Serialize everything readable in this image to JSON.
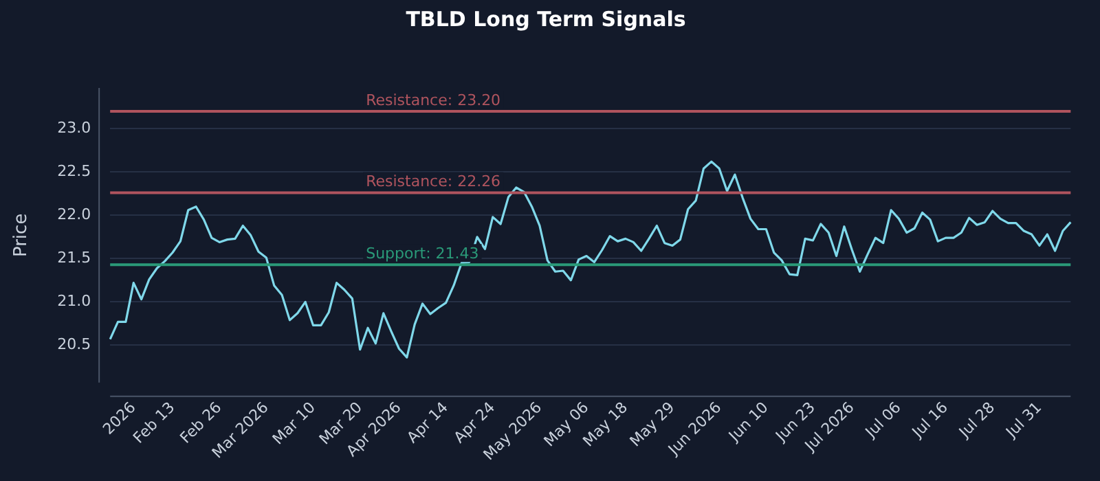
{
  "chart_data": {
    "type": "line",
    "title": "TBLD Long Term Signals",
    "ylabel": "Price",
    "categories": [
      null,
      null,
      null,
      "2026",
      null,
      null,
      null,
      null,
      "Feb 13",
      null,
      null,
      null,
      null,
      null,
      "Feb 26",
      null,
      null,
      null,
      null,
      null,
      "Mar 2026",
      null,
      null,
      null,
      null,
      null,
      "Mar 10",
      null,
      null,
      null,
      null,
      null,
      "Mar 20",
      null,
      null,
      null,
      null,
      "Apr 2026",
      null,
      null,
      null,
      null,
      null,
      "Apr 14",
      null,
      null,
      null,
      null,
      null,
      "Apr 24",
      null,
      null,
      null,
      null,
      null,
      "May 2026",
      null,
      null,
      null,
      null,
      null,
      "May 06",
      null,
      null,
      null,
      null,
      "May 18",
      null,
      null,
      null,
      null,
      null,
      "May 29",
      null,
      null,
      null,
      null,
      null,
      "Jun 2026",
      null,
      null,
      null,
      null,
      null,
      "Jun 10",
      null,
      null,
      null,
      null,
      null,
      "Jun 23",
      null,
      null,
      null,
      null,
      "Jul 2026",
      null,
      null,
      null,
      null,
      null,
      "Jul 06",
      null,
      null,
      null,
      null,
      null,
      "Jul 16",
      null,
      null,
      null,
      null,
      null,
      "Jul 28",
      null,
      null,
      null,
      null,
      null,
      "Jul 31",
      null,
      null,
      null,
      null
    ],
    "series": [
      {
        "color": "#7fd8ea",
        "values": [
          20.57,
          20.77,
          20.77,
          21.22,
          21.03,
          21.26,
          21.39,
          21.47,
          21.57,
          21.7,
          22.06,
          22.1,
          21.95,
          21.74,
          21.69,
          21.72,
          21.73,
          21.88,
          21.77,
          21.58,
          21.51,
          21.19,
          21.08,
          20.79,
          20.87,
          21.0,
          20.73,
          20.73,
          20.88,
          21.22,
          21.14,
          21.04,
          20.45,
          20.7,
          20.52,
          20.87,
          20.66,
          20.46,
          20.36,
          20.74,
          20.98,
          20.86,
          20.93,
          20.99,
          21.19,
          21.45,
          21.46,
          21.75,
          21.61,
          21.98,
          21.9,
          22.21,
          22.32,
          22.27,
          22.1,
          21.88,
          21.48,
          21.35,
          21.36,
          21.25,
          21.49,
          21.53,
          21.46,
          21.6,
          21.76,
          21.7,
          21.73,
          21.69,
          21.59,
          21.73,
          21.88,
          21.68,
          21.65,
          21.72,
          22.07,
          22.17,
          22.54,
          22.62,
          22.54,
          22.28,
          22.47,
          22.2,
          21.96,
          21.84,
          21.84,
          21.57,
          21.48,
          21.32,
          21.31,
          21.73,
          21.71,
          21.9,
          21.8,
          21.53,
          21.87,
          21.6,
          21.35,
          21.55,
          21.74,
          21.68,
          22.06,
          21.96,
          21.8,
          21.85,
          22.03,
          21.95,
          21.7,
          21.74,
          21.74,
          21.8,
          21.97,
          21.89,
          21.92,
          22.05,
          21.96,
          21.91,
          21.91,
          21.82,
          21.78,
          21.65,
          21.78,
          21.59,
          21.82,
          21.92
        ]
      }
    ],
    "ylim": [
      20.07,
      23.47
    ],
    "yticks": [
      20.5,
      {
        "value": 21,
        "label": "21.0"
      },
      21.5,
      {
        "value": 22,
        "label": "22.0"
      },
      22.5,
      {
        "value": 23,
        "label": "23.0"
      }
    ],
    "ref_lines": [
      {
        "axis": "y",
        "value": 23.2,
        "label": "Resistance: 23.20",
        "color": "#b0545e"
      },
      {
        "axis": "y",
        "value": 22.26,
        "label": "Resistance: 22.26",
        "color": "#b0545e"
      },
      {
        "axis": "y",
        "value": 21.43,
        "label": "Support: 21.43",
        "color": "#2a9a78"
      }
    ],
    "grid": "y",
    "marker": "none",
    "line_style": "solid",
    "legend": false
  }
}
